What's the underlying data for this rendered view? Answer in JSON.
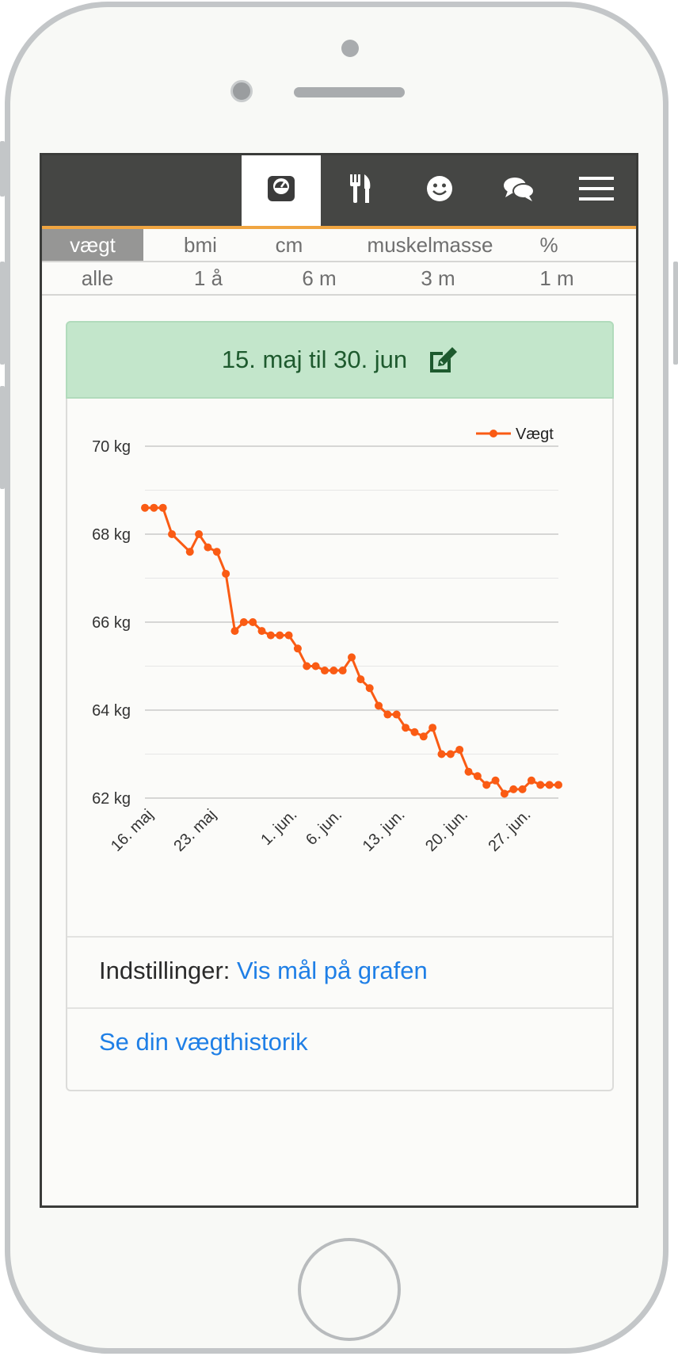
{
  "nav": {
    "icons": [
      "scale-icon",
      "fork-knife-icon",
      "smiley-icon",
      "chat-bubbles-icon",
      "hamburger-menu-icon"
    ],
    "active_index": 0
  },
  "metric_tabs": [
    "vægt",
    "bmi",
    "cm",
    "muskelmasse",
    "%"
  ],
  "metric_active": "vægt",
  "range_tabs": [
    "alle",
    "1 å",
    "6 m",
    "3 m",
    "1 m"
  ],
  "date_range": "15. maj til 30. jun",
  "settings": {
    "label": "Indstillinger:",
    "link": "Vis mål på grafen"
  },
  "history_link": "Se din vægthistorik",
  "colors": {
    "accent": "#f0a541",
    "series": "#fa5b14",
    "header_bg": "#c3e6cb",
    "link": "#1f7fe6",
    "nav_bg": "#454644"
  },
  "chart_data": {
    "type": "line",
    "legend_position": "top-right",
    "series": [
      {
        "name": "Vægt",
        "x": [
          "15. maj",
          "16. maj",
          "17. maj",
          "18. maj",
          "20. maj",
          "21. maj",
          "22. maj",
          "23. maj",
          "24. maj",
          "25. maj",
          "26. maj",
          "27. maj",
          "28. maj",
          "29. maj",
          "30. maj",
          "31. maj",
          "1. jun.",
          "2. jun.",
          "3. jun.",
          "4. jun.",
          "5. jun.",
          "6. jun.",
          "7. jun.",
          "8. jun.",
          "9. jun.",
          "10. jun.",
          "11. jun.",
          "12. jun.",
          "13. jun.",
          "14. jun.",
          "15. jun.",
          "16. jun.",
          "17. jun.",
          "18. jun.",
          "19. jun.",
          "20. jun.",
          "21. jun.",
          "22. jun.",
          "23. jun.",
          "24. jun.",
          "25. jun.",
          "26. jun.",
          "27. jun.",
          "28. jun.",
          "29. jun.",
          "30. jun."
        ],
        "values": [
          68.6,
          68.6,
          68.6,
          68.0,
          67.6,
          68.0,
          67.7,
          67.6,
          67.1,
          65.8,
          66.0,
          66.0,
          65.8,
          65.7,
          65.7,
          65.7,
          65.4,
          65.0,
          65.0,
          64.9,
          64.9,
          64.9,
          65.2,
          64.7,
          64.5,
          64.1,
          63.9,
          63.9,
          63.6,
          63.5,
          63.4,
          63.6,
          63.0,
          63.0,
          63.1,
          62.6,
          62.5,
          62.3,
          62.4,
          62.1,
          62.2,
          62.2,
          62.4,
          62.3,
          62.3,
          62.3
        ]
      }
    ],
    "y_ticks": [
      "70 kg",
      "68 kg",
      "66 kg",
      "64 kg",
      "62 kg"
    ],
    "x_tick_labels": [
      "16. maj",
      "23. maj",
      "1. jun.",
      "6. jun.",
      "13. jun.",
      "20. jun.",
      "27. jun."
    ],
    "x_tick_dates": [
      "16. maj",
      "23. maj",
      "1. jun.",
      "6. jun.",
      "13. jun.",
      "20. jun.",
      "27. jun."
    ],
    "ylim": [
      62,
      70
    ],
    "xlim": [
      "15. maj",
      "30. jun."
    ],
    "grid": true
  }
}
